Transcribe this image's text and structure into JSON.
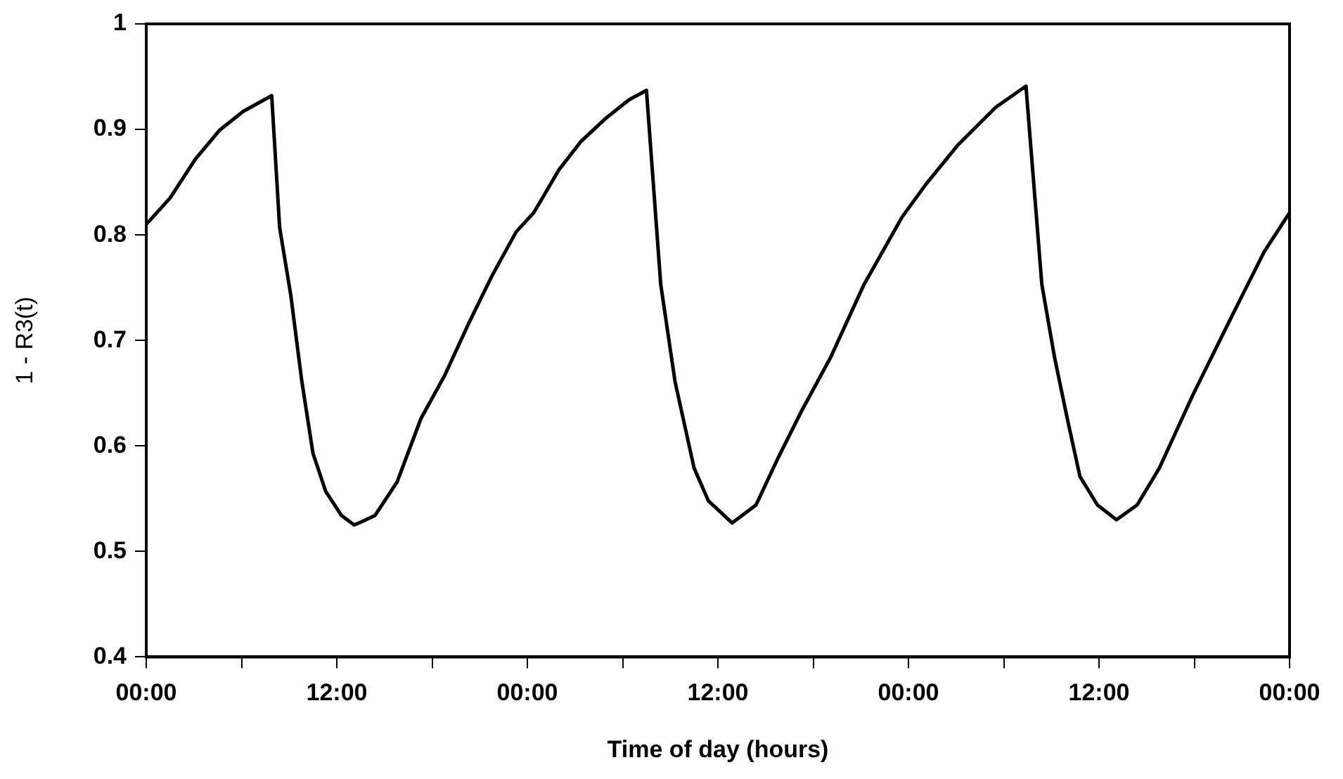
{
  "chart_data": {
    "type": "line",
    "xlabel": "Time of day (hours)",
    "ylabel": "1 - R3(t)",
    "x": [
      "--01-01T00:00",
      "--01-01T01:30",
      "--01-01T03:06",
      "--01-01T04:36",
      "--01-01T06:06",
      "--01-01T07:54",
      "--01-01T08:24",
      "--01-01T09:06",
      "--01-01T09:48",
      "--01-01T10:30",
      "--01-01T11:18",
      "--01-01T12:18",
      "--01-01T13:06",
      "--01-01T14:24",
      "--01-01T15:48",
      "--01-01T17:18",
      "--01-01T18:48",
      "--01-01T20:18",
      "--01-01T21:48",
      "--01-01T23:18",
      "--01-02T00:24",
      "--01-02T02:00",
      "--01-02T03:24",
      "--01-02T04:54",
      "--01-02T06:24",
      "--01-02T07:30",
      "--01-02T08:24",
      "--01-02T09:18",
      "--01-02T10:30",
      "--01-02T11:24",
      "--01-02T12:54",
      "--01-02T14:24",
      "--01-02T15:48",
      "--01-02T17:18",
      "--01-02T19:06",
      "--01-02T21:12",
      "--01-02T23:36",
      "--01-03T01:06",
      "--01-03T03:06",
      "--01-03T05:30",
      "--01-03T07:24",
      "--01-03T08:24",
      "--01-03T09:12",
      "--01-03T10:00",
      "--01-03T10:48",
      "--01-03T11:54",
      "--01-03T13:06",
      "--01-03T14:24",
      "--01-03T15:48",
      "--01-03T17:54",
      "--01-03T20:18",
      "--01-03T22:24",
      "--01-04T00:00"
    ],
    "series": [
      {
        "color": "#000000",
        "values": [
          0.81,
          0.835,
          0.872,
          0.899,
          0.917,
          0.932,
          0.807,
          0.743,
          0.661,
          0.593,
          0.557,
          0.534,
          0.525,
          0.534,
          0.566,
          0.626,
          0.667,
          0.716,
          0.762,
          0.803,
          0.821,
          0.862,
          0.889,
          0.91,
          0.928,
          0.937,
          0.753,
          0.661,
          0.579,
          0.548,
          0.527,
          0.544,
          0.589,
          0.634,
          0.684,
          0.753,
          0.817,
          0.848,
          0.885,
          0.921,
          0.941,
          0.753,
          0.684,
          0.626,
          0.571,
          0.544,
          0.53,
          0.544,
          0.579,
          0.648,
          0.721,
          0.784,
          0.821
        ]
      }
    ],
    "xlim": [
      "--01-01T00:00",
      "--01-04T00:00"
    ],
    "xticks": [
      {
        "value": "--01-01T00:00",
        "label": "00:00"
      },
      {
        "value": "--01-01T06:00",
        "label": null
      },
      {
        "value": "--01-01T12:00",
        "label": "12:00"
      },
      {
        "value": "--01-01T18:00",
        "label": null
      },
      {
        "value": "--01-02T00:00",
        "label": "00:00"
      },
      {
        "value": "--01-02T06:00",
        "label": null
      },
      {
        "value": "--01-02T12:00",
        "label": "12:00"
      },
      {
        "value": "--01-02T18:00",
        "label": null
      },
      {
        "value": "--01-03T00:00",
        "label": "00:00"
      },
      {
        "value": "--01-03T06:00",
        "label": null
      },
      {
        "value": "--01-03T12:00",
        "label": "12:00"
      },
      {
        "value": "--01-03T18:00",
        "label": null
      },
      {
        "value": "--01-04T00:00",
        "label": "00:00"
      }
    ],
    "ylim": [
      0.4,
      1
    ],
    "yticks": [
      0.4,
      0.5,
      0.6,
      0.7,
      0.8,
      0.9,
      1
    ],
    "grid": false,
    "legend": false,
    "marker": "none",
    "line_style": "solid"
  }
}
